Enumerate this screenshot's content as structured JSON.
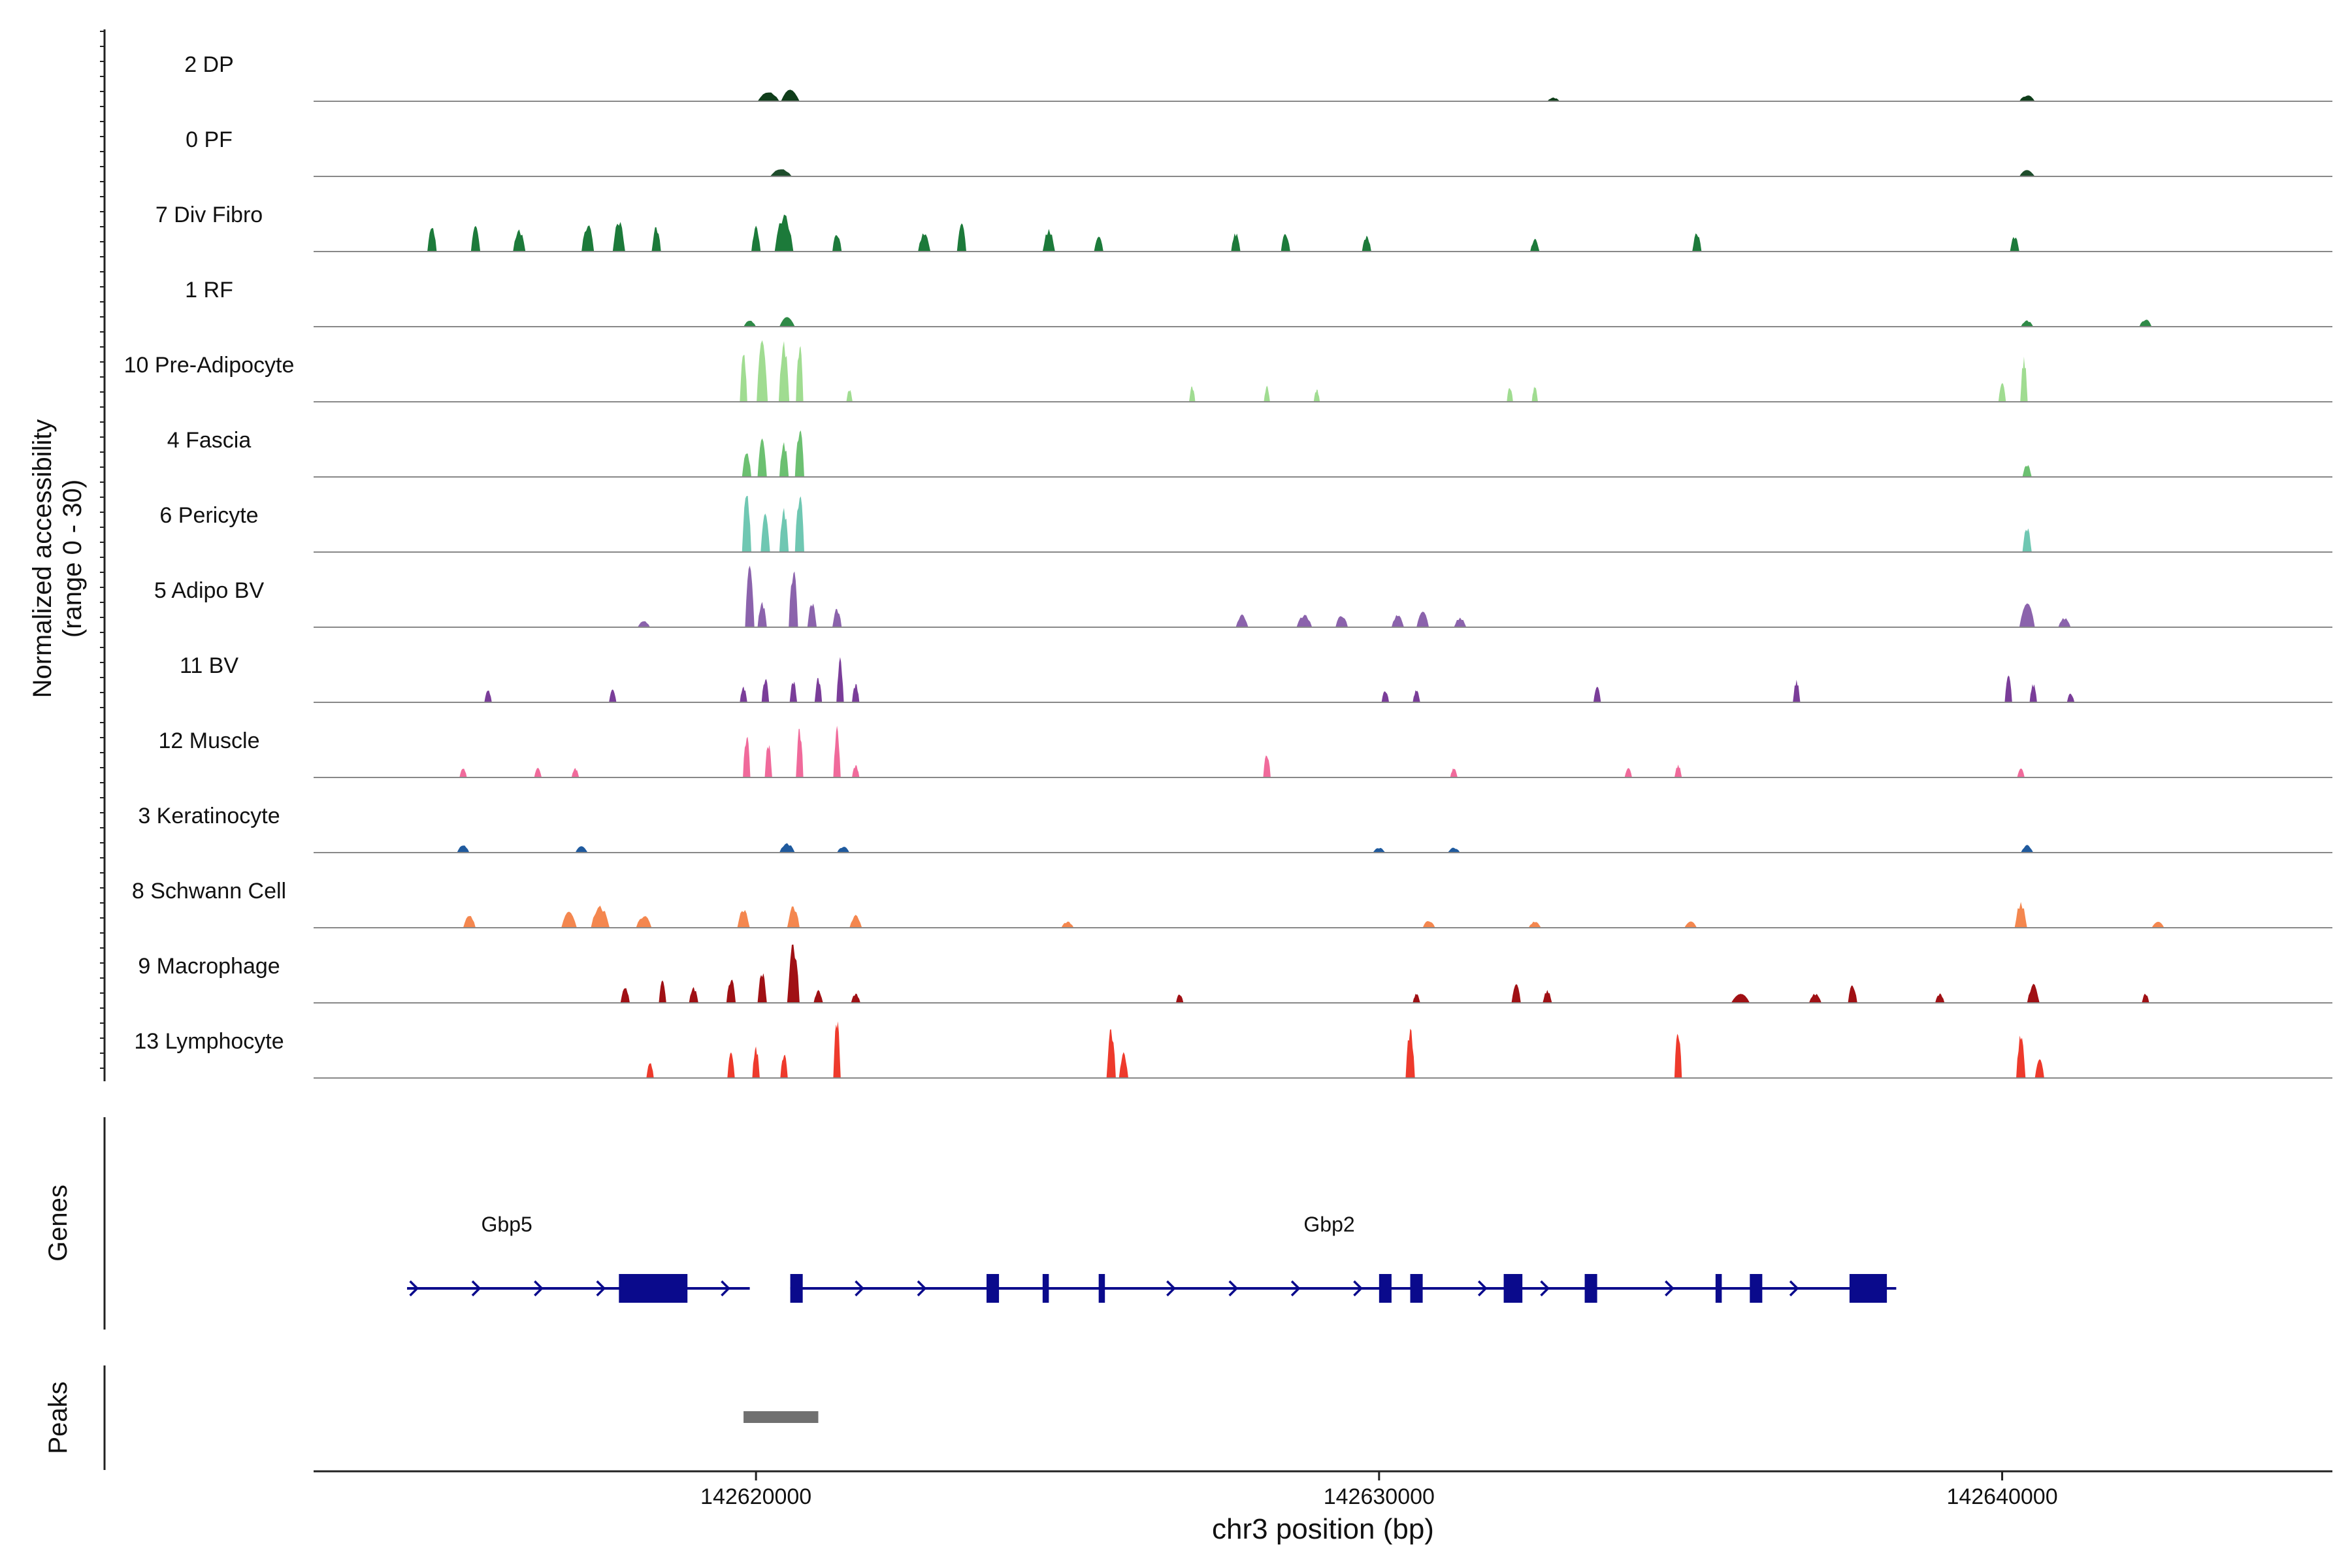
{
  "chart_data": {
    "type": "area",
    "title": "",
    "ylabel_line1": "Normalized accessibility",
    "ylabel_line2": "(range 0 - 30)",
    "xlabel": "chr3 position (bp)",
    "xlim": [
      142612900,
      142645300
    ],
    "ylim": [
      0,
      30
    ],
    "xticks": [
      142620000,
      142630000,
      142640000
    ],
    "xtick_labels": [
      "142620000",
      "142630000",
      "142640000"
    ],
    "genes_label": "Genes",
    "peaks_label": "Peaks",
    "tracks": [
      {
        "name": "2 DP",
        "color": "#0f3d1a",
        "peaks": [
          [
            142620200,
            1.5,
            350
          ],
          [
            142620550,
            1.8,
            300
          ],
          [
            142632800,
            0.6,
            200
          ],
          [
            142640400,
            1.0,
            250
          ]
        ]
      },
      {
        "name": "0 PF",
        "color": "#1e4d2b",
        "peaks": [
          [
            142620400,
            1.2,
            350
          ],
          [
            142640400,
            1.0,
            250
          ]
        ]
      },
      {
        "name": "7 Div Fibro",
        "color": "#1c7a3a",
        "peaks": [
          [
            142614800,
            4.0,
            150
          ],
          [
            142615500,
            4.0,
            150
          ],
          [
            142616200,
            3.5,
            200
          ],
          [
            142617300,
            4.5,
            200
          ],
          [
            142617800,
            5.0,
            200
          ],
          [
            142618400,
            4.0,
            150
          ],
          [
            142620000,
            4.0,
            150
          ],
          [
            142620450,
            6.0,
            300
          ],
          [
            142621300,
            3.0,
            150
          ],
          [
            142622700,
            3.0,
            200
          ],
          [
            142623300,
            4.5,
            150
          ],
          [
            142624700,
            3.5,
            200
          ],
          [
            142625500,
            2.5,
            150
          ],
          [
            142627700,
            3.0,
            150
          ],
          [
            142628500,
            3.0,
            150
          ],
          [
            142629800,
            2.5,
            150
          ],
          [
            142632500,
            2.0,
            150
          ],
          [
            142635100,
            3.0,
            150
          ],
          [
            142640200,
            2.5,
            150
          ]
        ]
      },
      {
        "name": "1 RF",
        "color": "#2f8a47",
        "peaks": [
          [
            142619900,
            1.0,
            200
          ],
          [
            142620500,
            1.5,
            250
          ],
          [
            142640400,
            1.0,
            200
          ],
          [
            142642300,
            1.2,
            200
          ]
        ]
      },
      {
        "name": "10 Pre-Adipocyte",
        "color": "#a0dc91",
        "peaks": [
          [
            142619800,
            8.0,
            120
          ],
          [
            142620100,
            14.0,
            180
          ],
          [
            142620450,
            17.0,
            170
          ],
          [
            142620700,
            18.0,
            120
          ],
          [
            142621500,
            2.0,
            100
          ],
          [
            142627000,
            2.5,
            100
          ],
          [
            142628200,
            2.5,
            100
          ],
          [
            142629000,
            2.0,
            100
          ],
          [
            142632100,
            2.5,
            100
          ],
          [
            142632500,
            2.5,
            100
          ],
          [
            142640000,
            3.0,
            120
          ],
          [
            142640350,
            7.0,
            120
          ]
        ]
      },
      {
        "name": "4 Fascia",
        "color": "#6cc071",
        "peaks": [
          [
            142619850,
            4.0,
            150
          ],
          [
            142620100,
            6.0,
            150
          ],
          [
            142620450,
            5.5,
            150
          ],
          [
            142620700,
            8.0,
            150
          ],
          [
            142640400,
            2.0,
            150
          ]
        ]
      },
      {
        "name": "6 Pericyte",
        "color": "#6fc7b2",
        "peaks": [
          [
            142619850,
            11.0,
            150
          ],
          [
            142620150,
            6.0,
            150
          ],
          [
            142620450,
            7.0,
            150
          ],
          [
            142620700,
            17.0,
            150
          ],
          [
            142640400,
            4.0,
            150
          ]
        ]
      },
      {
        "name": "5 Adipo BV",
        "color": "#8b63ac",
        "peaks": [
          [
            142618200,
            1.0,
            200
          ],
          [
            142619900,
            13.0,
            150
          ],
          [
            142620100,
            4.0,
            150
          ],
          [
            142620600,
            13.0,
            150
          ],
          [
            142620900,
            4.0,
            150
          ],
          [
            142621300,
            3.0,
            150
          ],
          [
            142627800,
            2.0,
            200
          ],
          [
            142628800,
            2.0,
            250
          ],
          [
            142629400,
            2.0,
            200
          ],
          [
            142630300,
            2.0,
            200
          ],
          [
            142630700,
            2.5,
            200
          ],
          [
            142631300,
            1.5,
            200
          ],
          [
            142640400,
            4.0,
            250
          ],
          [
            142641000,
            1.5,
            200
          ]
        ]
      },
      {
        "name": "11 BV",
        "color": "#7a3d99",
        "peaks": [
          [
            142615700,
            2.0,
            120
          ],
          [
            142617700,
            2.0,
            120
          ],
          [
            142619800,
            2.5,
            120
          ],
          [
            142620150,
            4.0,
            120
          ],
          [
            142620600,
            3.5,
            120
          ],
          [
            142621000,
            4.0,
            120
          ],
          [
            142621350,
            7.0,
            120
          ],
          [
            142621600,
            3.0,
            120
          ],
          [
            142630100,
            2.0,
            120
          ],
          [
            142630600,
            2.0,
            120
          ],
          [
            142633500,
            2.5,
            120
          ],
          [
            142636700,
            3.5,
            120
          ],
          [
            142640100,
            4.5,
            120
          ],
          [
            142640500,
            3.0,
            120
          ],
          [
            142641100,
            1.5,
            120
          ]
        ]
      },
      {
        "name": "12 Muscle",
        "color": "#f06a9b",
        "peaks": [
          [
            142615300,
            1.5,
            120
          ],
          [
            142616500,
            1.5,
            120
          ],
          [
            142617100,
            1.5,
            120
          ],
          [
            142619850,
            7.0,
            120
          ],
          [
            142620200,
            5.5,
            120
          ],
          [
            142620700,
            8.0,
            120
          ],
          [
            142621300,
            8.0,
            120
          ],
          [
            142621600,
            2.0,
            120
          ],
          [
            142628200,
            4.0,
            120
          ],
          [
            142631200,
            1.5,
            120
          ],
          [
            142634000,
            1.5,
            120
          ],
          [
            142634800,
            2.0,
            120
          ],
          [
            142640300,
            1.5,
            120
          ]
        ]
      },
      {
        "name": "3 Keratinocyte",
        "color": "#1f5a9e",
        "peaks": [
          [
            142615300,
            1.2,
            200
          ],
          [
            142617200,
            1.0,
            200
          ],
          [
            142620500,
            1.5,
            250
          ],
          [
            142621400,
            1.0,
            200
          ],
          [
            142630000,
            0.8,
            200
          ],
          [
            142631200,
            0.8,
            200
          ],
          [
            142640400,
            1.2,
            200
          ]
        ]
      },
      {
        "name": "8 Schwann Cell",
        "color": "#f4874f",
        "peaks": [
          [
            142615400,
            2.0,
            200
          ],
          [
            142617000,
            2.5,
            250
          ],
          [
            142617500,
            3.5,
            300
          ],
          [
            142618200,
            2.0,
            250
          ],
          [
            142619800,
            3.0,
            200
          ],
          [
            142620600,
            3.5,
            200
          ],
          [
            142621600,
            2.0,
            200
          ],
          [
            142625000,
            1.0,
            200
          ],
          [
            142630800,
            1.2,
            200
          ],
          [
            142632500,
            1.0,
            200
          ],
          [
            142635000,
            1.0,
            200
          ],
          [
            142640300,
            4.0,
            200
          ],
          [
            142642500,
            1.0,
            200
          ]
        ]
      },
      {
        "name": "9 Macrophage",
        "color": "#a01014",
        "peaks": [
          [
            142617900,
            2.5,
            150
          ],
          [
            142618500,
            3.5,
            120
          ],
          [
            142619000,
            2.5,
            150
          ],
          [
            142619600,
            4.0,
            150
          ],
          [
            142620100,
            5.0,
            150
          ],
          [
            142620600,
            13.0,
            200
          ],
          [
            142621000,
            2.0,
            150
          ],
          [
            142621600,
            1.5,
            150
          ],
          [
            142626800,
            1.5,
            120
          ],
          [
            142630600,
            1.5,
            120
          ],
          [
            142632200,
            3.0,
            150
          ],
          [
            142632700,
            2.0,
            150
          ],
          [
            142635800,
            1.5,
            300
          ],
          [
            142637000,
            1.5,
            200
          ],
          [
            142637600,
            3.0,
            150
          ],
          [
            142639000,
            1.5,
            150
          ],
          [
            142640500,
            3.0,
            200
          ],
          [
            142642300,
            1.5,
            120
          ]
        ]
      },
      {
        "name": "13 Lymphocyte",
        "color": "#ee3a2c",
        "peaks": [
          [
            142618300,
            2.5,
            120
          ],
          [
            142619600,
            4.0,
            120
          ],
          [
            142620000,
            5.0,
            120
          ],
          [
            142620450,
            4.0,
            120
          ],
          [
            142621300,
            10.0,
            120
          ],
          [
            142625700,
            8.0,
            150
          ],
          [
            142625900,
            4.0,
            150
          ],
          [
            142630500,
            8.0,
            150
          ],
          [
            142634800,
            8.0,
            120
          ],
          [
            142640300,
            7.0,
            150
          ],
          [
            142640600,
            3.0,
            150
          ]
        ]
      }
    ],
    "genes": [
      {
        "name": "Gbp5",
        "start": 142614400,
        "end": 142619900,
        "strand": "+",
        "exons": [
          [
            142617800,
            142618900
          ]
        ]
      },
      {
        "name": "Gbp2",
        "start": 142620550,
        "end": 142638300,
        "strand": "+",
        "exons": [
          [
            142620550,
            142620750
          ],
          [
            142623700,
            142623900
          ],
          [
            142624600,
            142624700
          ],
          [
            142625500,
            142625600
          ],
          [
            142630000,
            142630200
          ],
          [
            142630500,
            142630700
          ],
          [
            142632000,
            142632300
          ],
          [
            142633300,
            142633500
          ],
          [
            142635400,
            142635500
          ],
          [
            142635950,
            142636150
          ],
          [
            142637550,
            142638150
          ]
        ]
      }
    ],
    "peaks_regions": [
      [
        142619800,
        142621000
      ]
    ],
    "gene_color": "#0a0a8c",
    "peak_color": "#707070"
  }
}
